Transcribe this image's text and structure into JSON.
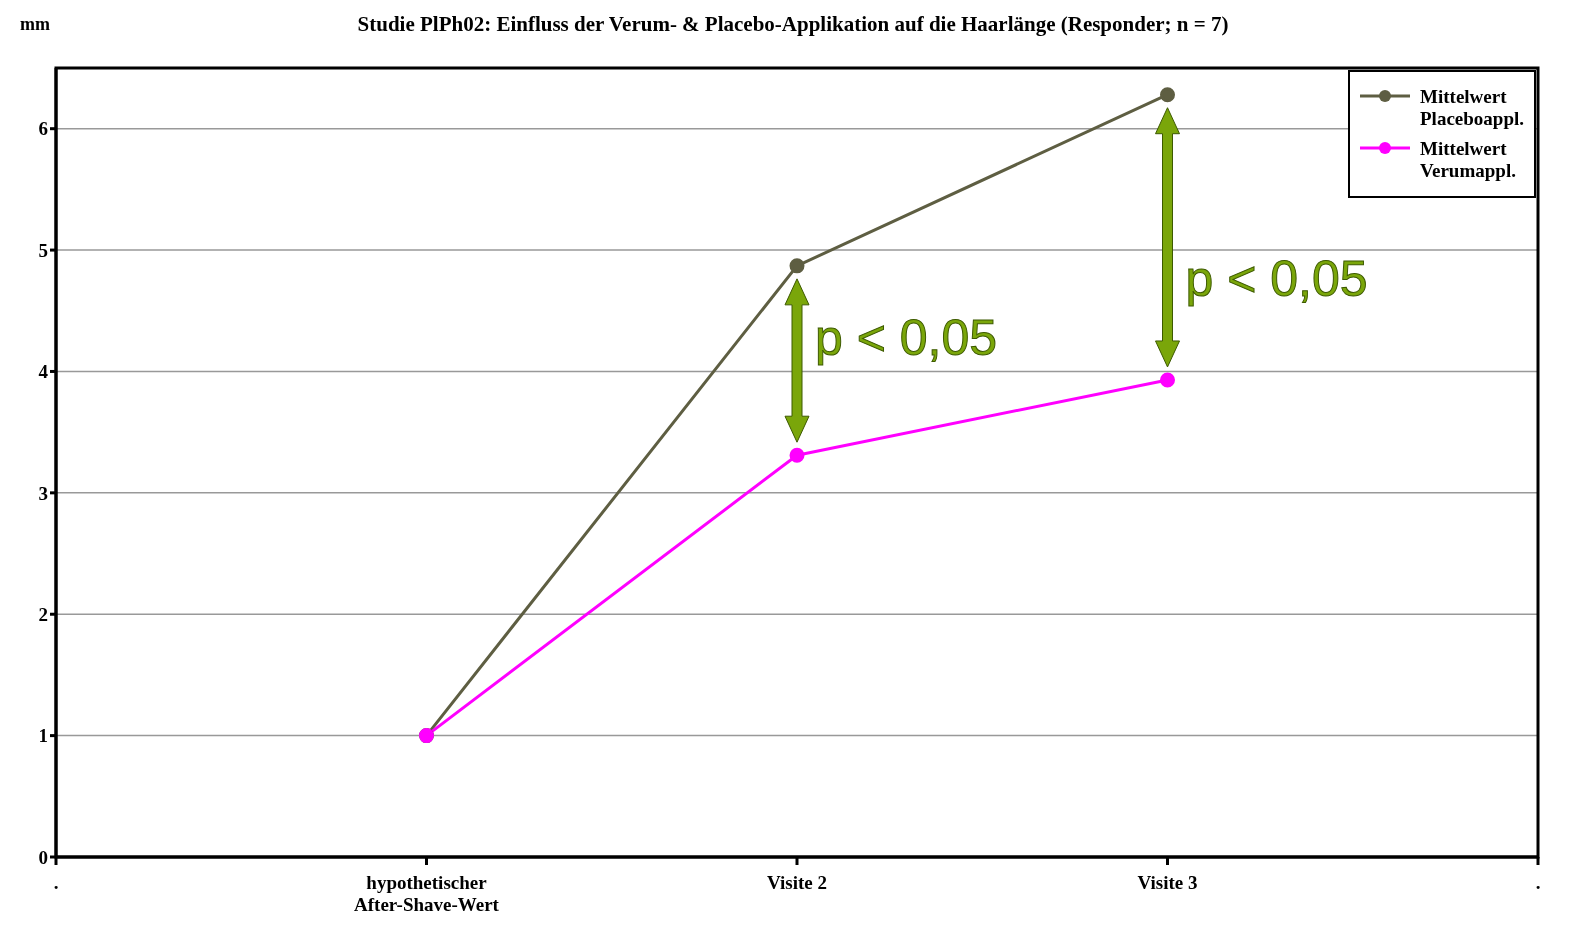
{
  "chart_data": {
    "type": "line",
    "title": "Studie PlPh02: Einfluss der Verum- & Placebo-Applikation auf die Haarlänge (Responder; n = 7)",
    "ylabel": "mm",
    "categories": [
      ".",
      "hypothetischer After-Shave-Wert",
      "Visite 2",
      "Visite 3",
      "."
    ],
    "series": [
      {
        "name": "Mittelwert Placeboappl.",
        "color": "#5e5e42",
        "values": [
          null,
          1,
          4.87,
          6.28,
          null
        ]
      },
      {
        "name": "Mittelwert Verumappl.",
        "color": "#ff00ff",
        "values": [
          null,
          1,
          3.31,
          3.93,
          null
        ]
      }
    ],
    "ylim": [
      0,
      6.5
    ],
    "yticks": [
      0,
      1,
      2,
      3,
      4,
      5,
      6
    ],
    "grid": "y",
    "legend": "top right",
    "marker": "circle",
    "line_style": "solid",
    "annotations": [
      "p < 0,05",
      "p < 0,05"
    ]
  }
}
